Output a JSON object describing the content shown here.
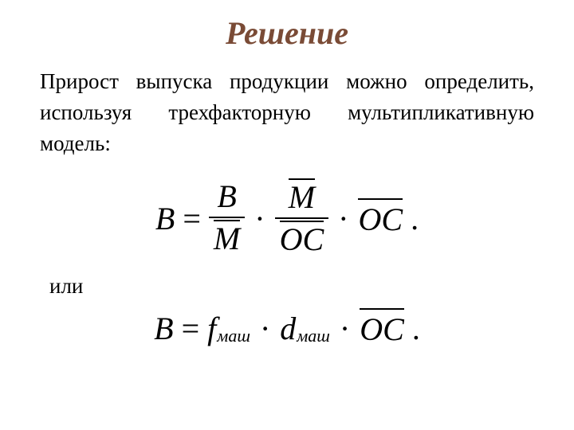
{
  "title": "Решение",
  "paragraph": "Прирост выпуска продукции можно определить, используя трехфакторную мультипликативную модель:",
  "or_label": "или",
  "colors": {
    "title_color": "#7a4b36",
    "text_color": "#000000",
    "background": "#ffffff",
    "rule_color": "#000000"
  },
  "typography": {
    "title_fontsize_pt": 30,
    "title_weight": "bold",
    "title_style": "italic",
    "body_fontsize_pt": 20,
    "body_family": "Times New Roman",
    "formula_fontsize_pt": 30
  },
  "formula1": {
    "lhs": "B",
    "eq": "=",
    "t1_num": "B",
    "t1_den": "M",
    "mult": "·",
    "t2_num": "M",
    "t2_den": "OC",
    "t3": "OC",
    "period": "."
  },
  "formula2": {
    "lhs": "B",
    "eq": "=",
    "f": "f",
    "f_sub": "маш",
    "mult": "·",
    "d": "d",
    "d_sub": "маш",
    "oc": "OC",
    "period": "."
  }
}
